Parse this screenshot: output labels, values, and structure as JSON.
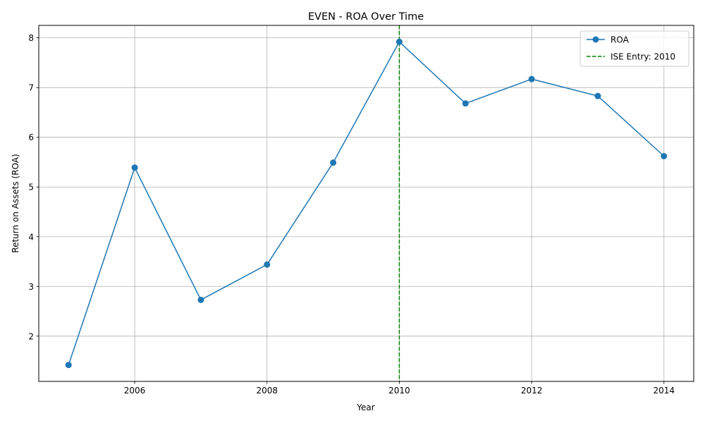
{
  "chart_data": {
    "type": "line",
    "title": "EVEN - ROA Over Time",
    "xlabel": "Year",
    "ylabel": "Return on Assets (ROA)",
    "xlim": [
      2004.55,
      2014.45
    ],
    "ylim": [
      1.09,
      8.25
    ],
    "x_ticks": [
      2006,
      2008,
      2010,
      2012,
      2014
    ],
    "y_ticks": [
      2,
      3,
      4,
      5,
      6,
      7,
      8
    ],
    "x_tick_labels": [
      "2006",
      "2008",
      "2010",
      "2012",
      "2014"
    ],
    "y_tick_labels": [
      "2",
      "3",
      "4",
      "5",
      "6",
      "7",
      "8"
    ],
    "grid": true,
    "legend_position": "upper right",
    "series": [
      {
        "name": "ROA",
        "color": "#1f77b4",
        "marker": "circle",
        "x": [
          2005,
          2006,
          2007,
          2008,
          2009,
          2010,
          2011,
          2012,
          2013,
          2014
        ],
        "values": [
          1.42,
          5.39,
          2.73,
          3.44,
          5.49,
          7.92,
          6.68,
          7.17,
          6.83,
          5.62
        ]
      }
    ],
    "reference_lines": [
      {
        "name": "ISE Entry: 2010",
        "orientation": "vertical",
        "x": 2010,
        "color": "#008000",
        "style": "dashed"
      }
    ]
  }
}
